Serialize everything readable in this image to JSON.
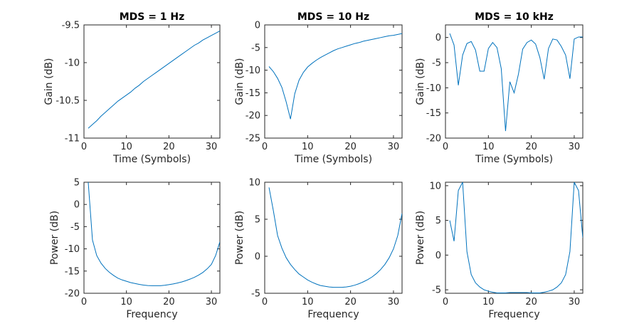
{
  "chart_data": [
    {
      "type": "line",
      "title": "MDS = 1 Hz",
      "xlabel": "Time (Symbols)",
      "ylabel": "Gain (dB)",
      "xlim": [
        0,
        32
      ],
      "ylim": [
        -11,
        -9.5
      ],
      "xticks": [
        0,
        10,
        20,
        30
      ],
      "yticks": [
        -11,
        -10.5,
        -10,
        -9.5
      ],
      "grid": false,
      "color": "#0072bd",
      "series": [
        {
          "x": [
            1,
            2,
            3,
            4,
            5,
            6,
            7,
            8,
            9,
            10,
            11,
            12,
            13,
            14,
            15,
            16,
            17,
            18,
            19,
            20,
            21,
            22,
            23,
            24,
            25,
            26,
            27,
            28,
            29,
            30,
            31,
            32
          ],
          "values": [
            -10.87,
            -10.82,
            -10.77,
            -10.71,
            -10.66,
            -10.61,
            -10.56,
            -10.51,
            -10.47,
            -10.43,
            -10.39,
            -10.34,
            -10.3,
            -10.25,
            -10.21,
            -10.17,
            -10.13,
            -10.09,
            -10.05,
            -10.01,
            -9.97,
            -9.93,
            -9.89,
            -9.85,
            -9.81,
            -9.77,
            -9.74,
            -9.7,
            -9.67,
            -9.64,
            -9.61,
            -9.58
          ]
        }
      ]
    },
    {
      "type": "line",
      "title": "MDS = 10 Hz",
      "xlabel": "Time (Symbols)",
      "ylabel": "Gain (dB)",
      "xlim": [
        0,
        32
      ],
      "ylim": [
        -25,
        0
      ],
      "xticks": [
        0,
        10,
        20,
        30
      ],
      "yticks": [
        -25,
        -20,
        -15,
        -10,
        -5,
        0
      ],
      "grid": false,
      "color": "#0072bd",
      "series": [
        {
          "x": [
            1,
            2,
            3,
            4,
            5,
            6,
            7,
            8,
            9,
            10,
            11,
            12,
            13,
            14,
            15,
            16,
            17,
            18,
            19,
            20,
            21,
            22,
            23,
            24,
            25,
            26,
            27,
            28,
            29,
            30,
            31,
            32
          ],
          "values": [
            -9.2,
            -10.3,
            -11.8,
            -13.8,
            -17,
            -20.8,
            -15.2,
            -12.2,
            -10.5,
            -9.3,
            -8.5,
            -7.8,
            -7.2,
            -6.7,
            -6.2,
            -5.7,
            -5.3,
            -5,
            -4.7,
            -4.4,
            -4.1,
            -3.9,
            -3.6,
            -3.4,
            -3.2,
            -3,
            -2.8,
            -2.6,
            -2.4,
            -2.3,
            -2.1,
            -1.9
          ]
        }
      ]
    },
    {
      "type": "line",
      "title": "MDS = 10 kHz",
      "xlabel": "Time (Symbols)",
      "ylabel": "Gain (dB)",
      "xlim": [
        0,
        32
      ],
      "ylim": [
        -20,
        2.5
      ],
      "xticks": [
        0,
        10,
        20,
        30
      ],
      "yticks": [
        -20,
        -15,
        -10,
        -5,
        0
      ],
      "grid": false,
      "color": "#0072bd",
      "series": [
        {
          "x": [
            1,
            2,
            3,
            4,
            5,
            6,
            7,
            8,
            9,
            10,
            11,
            12,
            13,
            14,
            15,
            16,
            17,
            18,
            19,
            20,
            21,
            22,
            23,
            24,
            25,
            26,
            27,
            28,
            29,
            30,
            31,
            32
          ],
          "values": [
            0.8,
            -1.5,
            -9.5,
            -3.5,
            -1.2,
            -0.8,
            -2.5,
            -6.7,
            -6.7,
            -2.2,
            -1,
            -2,
            -6.2,
            -18.6,
            -8.8,
            -11,
            -7.3,
            -2.3,
            -1,
            -0.5,
            -1.3,
            -4,
            -8.3,
            -2.2,
            -0.3,
            -0.5,
            -1.8,
            -3.5,
            -8.2,
            -0.3,
            0.1,
            0.1
          ]
        }
      ]
    },
    {
      "type": "line",
      "title": "",
      "xlabel": "Frequency",
      "ylabel": "Power (dB)",
      "xlim": [
        0,
        32
      ],
      "ylim": [
        -20,
        5
      ],
      "xticks": [
        0,
        10,
        20,
        30
      ],
      "yticks": [
        -20,
        -15,
        -10,
        -5,
        0,
        5
      ],
      "grid": false,
      "color": "#0072bd",
      "series": [
        {
          "x": [
            1,
            2,
            3,
            4,
            5,
            6,
            7,
            8,
            9,
            10,
            11,
            12,
            13,
            14,
            15,
            16,
            17,
            18,
            19,
            20,
            21,
            22,
            23,
            24,
            25,
            26,
            27,
            28,
            29,
            30,
            31,
            32
          ],
          "values": [
            5,
            -8,
            -11.5,
            -13.2,
            -14.4,
            -15.3,
            -16,
            -16.6,
            -17,
            -17.3,
            -17.6,
            -17.8,
            -18,
            -18.15,
            -18.25,
            -18.3,
            -18.3,
            -18.3,
            -18.2,
            -18.05,
            -17.9,
            -17.7,
            -17.45,
            -17.15,
            -16.8,
            -16.4,
            -15.9,
            -15.3,
            -14.5,
            -13.5,
            -11.5,
            -8.4
          ]
        }
      ]
    },
    {
      "type": "line",
      "title": "",
      "xlabel": "Frequency",
      "ylabel": "Power (dB)",
      "xlim": [
        0,
        32
      ],
      "ylim": [
        -5,
        10
      ],
      "xticks": [
        0,
        10,
        20,
        30
      ],
      "yticks": [
        -5,
        0,
        5,
        10
      ],
      "grid": false,
      "color": "#0072bd",
      "series": [
        {
          "x": [
            1,
            2,
            3,
            4,
            5,
            6,
            7,
            8,
            9,
            10,
            11,
            12,
            13,
            14,
            15,
            16,
            17,
            18,
            19,
            20,
            21,
            22,
            23,
            24,
            25,
            26,
            27,
            28,
            29,
            30,
            31,
            32
          ],
          "values": [
            9.3,
            6.2,
            2.8,
            1.1,
            -0.2,
            -1.1,
            -1.8,
            -2.4,
            -2.8,
            -3.2,
            -3.5,
            -3.75,
            -3.95,
            -4.05,
            -4.15,
            -4.2,
            -4.2,
            -4.2,
            -4.15,
            -4.05,
            -3.9,
            -3.7,
            -3.45,
            -3.15,
            -2.8,
            -2.35,
            -1.8,
            -1.1,
            -0.2,
            1,
            2.8,
            5.8
          ]
        }
      ]
    },
    {
      "type": "line",
      "title": "",
      "xlabel": "Frequency",
      "ylabel": "Power (dB)",
      "xlim": [
        0,
        32
      ],
      "ylim": [
        -5.5,
        10.5
      ],
      "xticks": [
        0,
        10,
        20,
        30
      ],
      "yticks": [
        -5,
        0,
        5,
        10
      ],
      "grid": false,
      "color": "#0072bd",
      "series": [
        {
          "x": [
            1,
            2,
            3,
            4,
            5,
            6,
            7,
            8,
            9,
            10,
            11,
            12,
            13,
            14,
            15,
            16,
            17,
            18,
            19,
            20,
            21,
            22,
            23,
            24,
            25,
            26,
            27,
            28,
            29,
            30,
            31,
            32
          ],
          "values": [
            5,
            2,
            9.3,
            10.5,
            0.5,
            -2.8,
            -4,
            -4.6,
            -5,
            -5.2,
            -5.35,
            -5.45,
            -5.45,
            -5.45,
            -5.4,
            -5.4,
            -5.4,
            -5.4,
            -5.4,
            -5.45,
            -5.45,
            -5.45,
            -5.35,
            -5.2,
            -5,
            -4.6,
            -4,
            -2.8,
            0.5,
            10.5,
            9.3,
            2.5
          ]
        }
      ]
    }
  ]
}
